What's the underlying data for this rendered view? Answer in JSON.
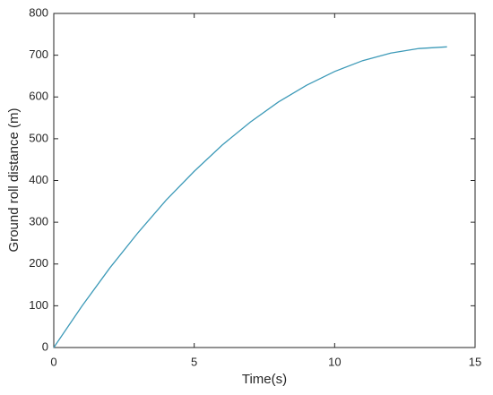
{
  "chart_data": {
    "type": "line",
    "xlabel": "Time(s)",
    "ylabel": "Ground roll distance (m)",
    "x": [
      0,
      1,
      2,
      3,
      4,
      5,
      6,
      7,
      8,
      9,
      10,
      11,
      12,
      13,
      14
    ],
    "values": [
      0,
      99,
      191,
      275,
      353,
      422,
      485,
      540,
      588,
      628,
      661,
      687,
      705,
      716,
      720
    ],
    "color": "#3d9ab8",
    "xlim": [
      0,
      15
    ],
    "xticks": [
      0,
      5,
      10,
      15
    ],
    "ylim": [
      0,
      800
    ],
    "yticks": [
      0,
      100,
      200,
      300,
      400,
      500,
      600,
      700,
      800
    ],
    "grid": false
  }
}
